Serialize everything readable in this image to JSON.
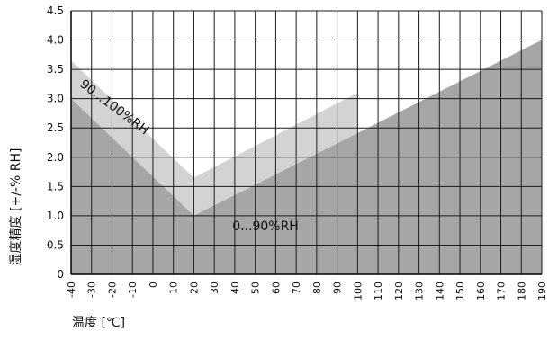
{
  "chart_data": {
    "type": "area",
    "xlabel": "温度 [℃]",
    "ylabel": "湿度精度 [+/-% RH]",
    "xlim": [
      -40,
      190
    ],
    "ylim": [
      0,
      4.5
    ],
    "x_ticks": [
      -40,
      -30,
      -20,
      -10,
      0,
      10,
      20,
      30,
      40,
      50,
      60,
      70,
      80,
      90,
      100,
      110,
      120,
      130,
      140,
      150,
      160,
      170,
      180,
      190
    ],
    "y_ticks": [
      0,
      0.5,
      1.0,
      1.5,
      2.0,
      2.5,
      3.0,
      3.5,
      4.0,
      4.5
    ],
    "x_tick_labels": [
      "-40",
      "-30",
      "-20",
      "-10",
      "0",
      "10",
      "20",
      "30",
      "40",
      "50",
      "60",
      "70",
      "80",
      "90",
      "100",
      "110",
      "120",
      "130",
      "140",
      "150",
      "160",
      "170",
      "180",
      "190"
    ],
    "y_tick_labels": [
      "0",
      "0.5",
      "1.0",
      "1.5",
      "2.0",
      "2.5",
      "3.0",
      "3.5",
      "4.0",
      "4.5"
    ],
    "grid": true,
    "series": [
      {
        "name": "90...100%RH",
        "color": "#d3d3d3",
        "points": [
          [
            -40,
            3.65
          ],
          [
            20,
            1.65
          ],
          [
            100,
            3.1
          ],
          [
            100,
            0
          ],
          [
            -40,
            0
          ]
        ]
      },
      {
        "name": "0...90%RH",
        "color": "#a6a6a6",
        "points": [
          [
            -40,
            3.0
          ],
          [
            20,
            1.0
          ],
          [
            190,
            4.0
          ],
          [
            190,
            0
          ],
          [
            -40,
            0
          ]
        ]
      }
    ],
    "annotations": [
      {
        "text": "90...100%RH",
        "x": -20,
        "y": 2.8,
        "rotation": 37
      },
      {
        "text": "0...90%RH",
        "x": 55,
        "y": 0.75,
        "rotation": 0
      }
    ]
  }
}
